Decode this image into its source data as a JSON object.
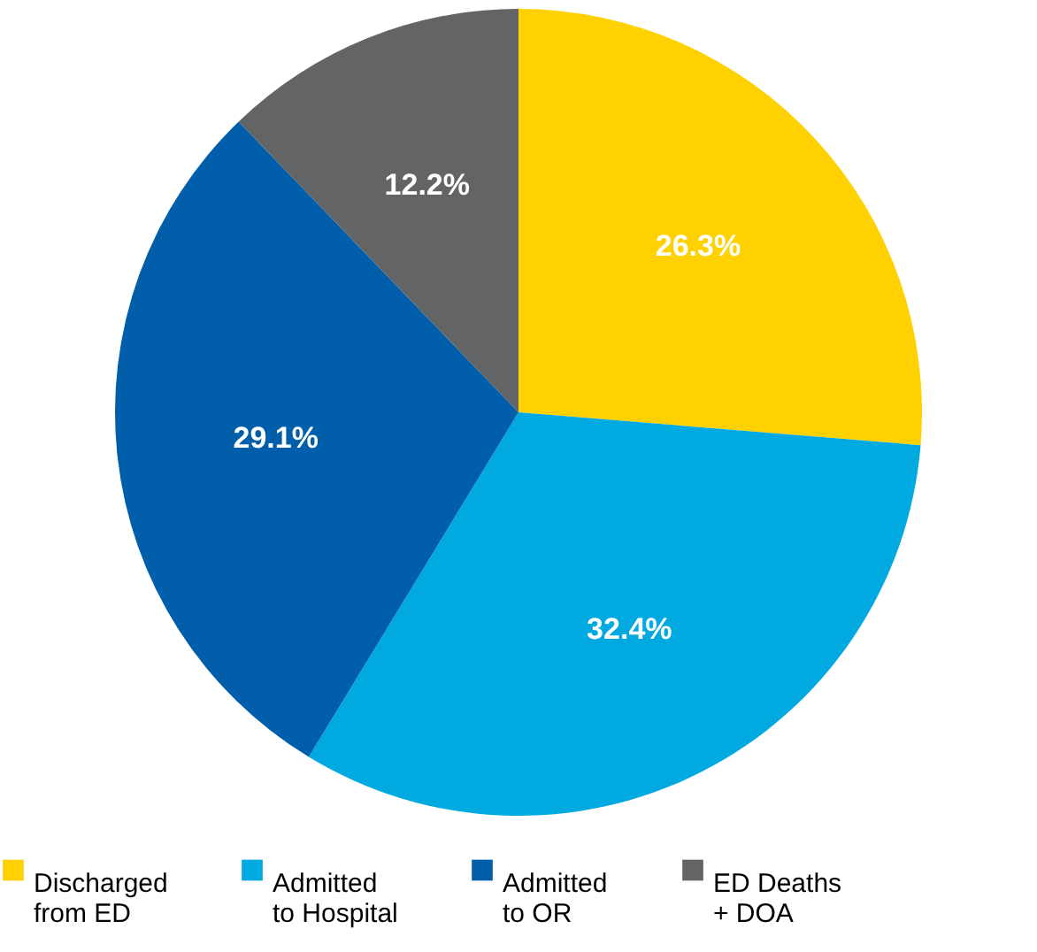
{
  "chart_data": {
    "type": "pie",
    "categories": [
      "Discharged\nfrom ED",
      "Admitted\nto Hospital",
      "Admitted\nto OR",
      "ED Deaths\n+ DOA"
    ],
    "values": [
      26.3,
      32.4,
      29.1,
      12.2
    ],
    "colors": [
      "#ffd100",
      "#00a9e0",
      "#005eab",
      "#636466"
    ],
    "value_labels": [
      "26.3%",
      "32.4%",
      "29.1%",
      "12.2%"
    ],
    "legend": "bottom"
  }
}
